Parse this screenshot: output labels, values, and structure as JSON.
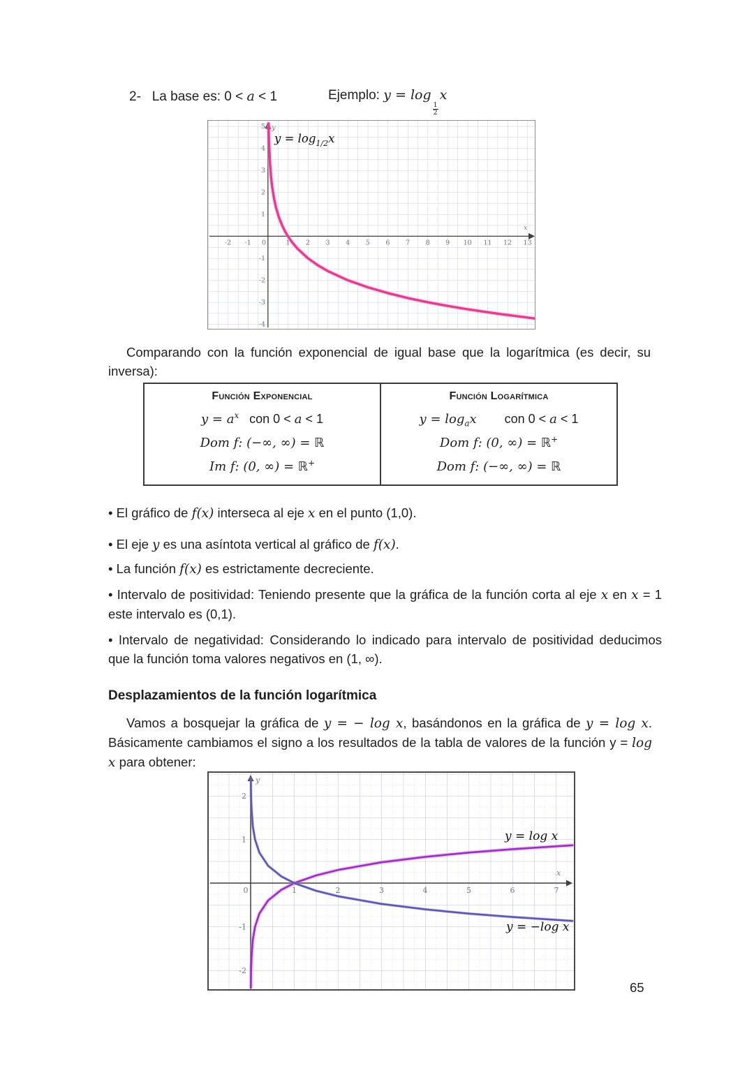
{
  "page_number": "65",
  "heading": {
    "left": [
      {
        "t": "2-   La base es: 0 < "
      },
      {
        "t": "a",
        "i": true
      },
      {
        "t": " < 1"
      }
    ],
    "example": [
      {
        "t": "Ejemplo: "
      },
      {
        "t": "y",
        "i": true
      },
      {
        "t": " = ",
        "i": true
      },
      {
        "t": "log",
        "i": true
      },
      {
        "frac": [
          "1",
          "2"
        ]
      },
      {
        "t": "x",
        "i": true
      }
    ]
  },
  "para_compare": [
    {
      "t": "Comparando con la función exponencial de igual base que la logarítmica (es decir, su inversa):"
    }
  ],
  "table": {
    "left": {
      "header": "Función Exponencial",
      "line1": [
        {
          "t": "y = a",
          "i": true
        },
        {
          "t": "x",
          "i": true,
          "sup": true
        },
        {
          "t": "   con 0 < "
        },
        {
          "t": "a",
          "i": true
        },
        {
          "t": " < 1"
        }
      ],
      "line2": [
        {
          "t": "Dom f: (−∞, ∞) = ",
          "i": true
        },
        {
          "t": "ℝ",
          "bb": true
        }
      ],
      "line3": [
        {
          "t": "Im f: (0, ∞) = ",
          "i": true
        },
        {
          "t": "ℝ",
          "bb": true
        },
        {
          "t": "+",
          "bb": true,
          "sup": true
        }
      ]
    },
    "right": {
      "header": "Función Logarítmica",
      "line1": [
        {
          "t": "y = log",
          "i": true
        },
        {
          "t": "a",
          "i": true,
          "sub": true
        },
        {
          "t": "x",
          "i": true
        },
        {
          "t": "        con 0 < "
        },
        {
          "t": "a",
          "i": true
        },
        {
          "t": " < 1"
        }
      ],
      "line2": [
        {
          "t": "Dom f: (0, ∞) = ",
          "i": true
        },
        {
          "t": "ℝ",
          "bb": true
        },
        {
          "t": "+",
          "bb": true,
          "sup": true
        }
      ],
      "line3": [
        {
          "t": "Dom f: (−∞, ∞) = ",
          "i": true
        },
        {
          "t": "ℝ",
          "bb": true
        }
      ]
    }
  },
  "bullets": [
    [
      {
        "t": "• El gráfico de "
      },
      {
        "t": "f(x)",
        "i": true
      },
      {
        "t": " interseca al eje "
      },
      {
        "t": "x",
        "i": true
      },
      {
        "t": " en el punto (1,0)."
      }
    ],
    [
      {
        "t": "• El eje "
      },
      {
        "t": "y",
        "i": true
      },
      {
        "t": " es una asíntota vertical al gráfico de "
      },
      {
        "t": "f(x)",
        "i": true
      },
      {
        "t": "."
      }
    ],
    [
      {
        "t": "• La función "
      },
      {
        "t": "f(x)",
        "i": true
      },
      {
        "t": " es estrictamente decreciente."
      }
    ],
    [
      {
        "t": "• Intervalo de positividad: Teniendo presente que la gráfica de la función corta al eje "
      },
      {
        "t": "x",
        "i": true
      },
      {
        "t": " en "
      },
      {
        "t": "x",
        "i": true
      },
      {
        "t": " = 1 este intervalo es (0,1)."
      }
    ],
    [
      {
        "t": "• Intervalo de negatividad: Considerando lo indicado para intervalo de positividad deducimos que la función toma valores negativos en (1, ∞)."
      }
    ]
  ],
  "shift": {
    "heading": "Desplazamientos de la función logarítmica",
    "para": [
      {
        "t": "Vamos a bosquejar la gráfica de "
      },
      {
        "t": "y = − log x",
        "i": true
      },
      {
        "t": ", basándonos en la gráfica de "
      },
      {
        "t": "y = log x",
        "i": true
      },
      {
        "t": ". Básicamente cambiamos el signo a los resultados de la tabla de valores de la función y = "
      },
      {
        "t": "log x",
        "i": true
      },
      {
        "t": " para obtener:"
      }
    ]
  },
  "graph1": {
    "curve_label_parts": [
      "y = log",
      "1/2",
      "x"
    ],
    "axis_x": "x",
    "axis_y": "y",
    "xticks": [
      "-2",
      "-1",
      "0",
      "1",
      "2",
      "3",
      "4",
      "5",
      "6",
      "7",
      "8",
      "9",
      "10",
      "11",
      "12",
      "13"
    ],
    "yticks_pos": [
      "5",
      "4",
      "3",
      "2",
      "1"
    ],
    "yticks_neg": [
      "-1",
      "-2",
      "-3",
      "-4"
    ]
  },
  "graph2": {
    "label_log": "y = log x",
    "label_neglog": "y = −log x",
    "axis_x": "x",
    "axis_y": "y",
    "xticks": [
      "0",
      "1",
      "2",
      "3",
      "4",
      "5",
      "6",
      "7"
    ],
    "yticks": [
      "2",
      "1",
      "-1",
      "-2"
    ]
  },
  "colors": {
    "curve_log_half": "#e23d90",
    "curve_log": "#8f35c0",
    "curve_neg_log": "#5c59ad",
    "grid": "#c7cee2",
    "axis": "#3f3f3f"
  },
  "chart_data": [
    {
      "type": "line",
      "title": "y = log_(1/2) x",
      "xlabel": "x",
      "ylabel": "y",
      "xlim": [
        -2.9,
        13.4
      ],
      "ylim": [
        -4.3,
        5.2
      ],
      "grid": true,
      "series": [
        {
          "name": "y = log_(1/2) x",
          "x": [
            0.125,
            0.25,
            0.5,
            1,
            2,
            4,
            8,
            13
          ],
          "y": [
            3,
            2,
            1,
            0,
            -1,
            -2,
            -3,
            -3.7
          ]
        }
      ],
      "annotations": [
        "y = log₁/₂x"
      ]
    },
    {
      "type": "line",
      "title": "y = log x  y  y = −log x",
      "xlabel": "x",
      "ylabel": "y",
      "xlim": [
        -0.95,
        7.4
      ],
      "ylim": [
        -2.45,
        2.55
      ],
      "grid": true,
      "series": [
        {
          "name": "y = log x",
          "x": [
            0.01,
            0.1,
            0.5,
            1,
            2,
            3,
            4,
            5,
            6,
            7
          ],
          "y": [
            -2,
            -1,
            -0.301,
            0,
            0.301,
            0.477,
            0.602,
            0.699,
            0.778,
            0.845
          ]
        },
        {
          "name": "y = −log x",
          "x": [
            0.01,
            0.1,
            0.5,
            1,
            2,
            3,
            4,
            5,
            6,
            7
          ],
          "y": [
            2,
            1,
            0.301,
            0,
            -0.301,
            -0.477,
            -0.602,
            -0.699,
            -0.778,
            -0.845
          ]
        }
      ],
      "annotations": [
        "y = log x",
        "y = −log x"
      ]
    }
  ]
}
